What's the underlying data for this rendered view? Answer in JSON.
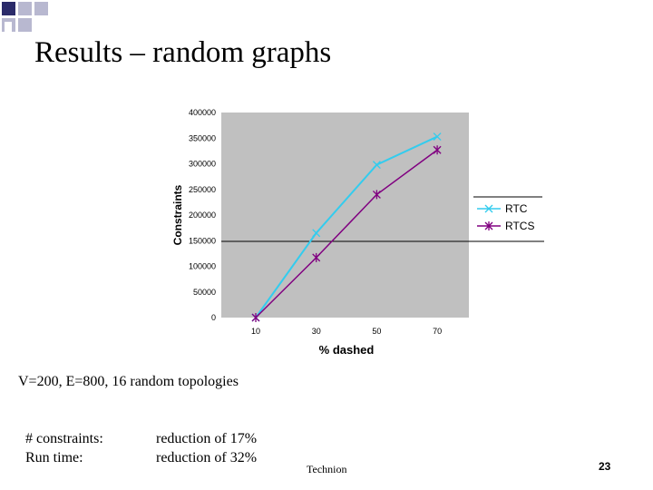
{
  "slide": {
    "title": "Results – random graphs",
    "subtitle": "V=200, E=800, 16 random topologies",
    "stats": [
      {
        "label": "# constraints:",
        "value": "reduction of 17%"
      },
      {
        "label": "Run time:",
        "value": "reduction of 32%"
      }
    ],
    "footer": "Technion",
    "page_number": "23"
  },
  "colors": {
    "plot_background": "#c0c0c0",
    "rtc": "#33ccee",
    "rtcs": "#800080",
    "deco_dark": "#2b2b6a",
    "deco_light": "#b8b8d0"
  },
  "chart_data": {
    "type": "line",
    "xlabel": "% dashed",
    "ylabel": "Constraints",
    "categories": [
      "10",
      "30",
      "50",
      "70"
    ],
    "y_ticks": [
      "0",
      "50000",
      "100000",
      "150000",
      "200000",
      "250000",
      "300000",
      "350000",
      "400000"
    ],
    "ylim": [
      0,
      400000
    ],
    "grid": false,
    "legend_position": "right",
    "series": [
      {
        "name": "RTC",
        "values": [
          0,
          165000,
          298000,
          353000
        ],
        "marker": "x"
      },
      {
        "name": "RTCS",
        "values": [
          0,
          117000,
          240000,
          327000
        ],
        "marker": "star"
      }
    ]
  }
}
